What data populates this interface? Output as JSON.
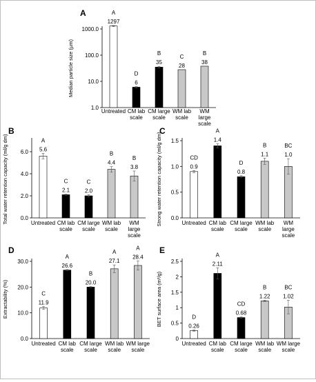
{
  "colors": {
    "untreated": "#ffffff",
    "cm": "#000000",
    "wm": "#c8c8c8",
    "axis": "#000000",
    "outline": "#000000"
  },
  "chart_data": [
    {
      "panel": "A",
      "type": "bar",
      "scale": "log",
      "ylabel": "Median particle size (µm)",
      "ylim": [
        1,
        1000
      ],
      "yticks": [
        "1.0",
        "10.0",
        "100.0",
        "1000.0"
      ],
      "ytick_values": [
        1,
        10,
        100,
        1000
      ],
      "categories": [
        {
          "lines": [
            "Untreated"
          ],
          "group": "untreated"
        },
        {
          "lines": [
            "CM lab",
            "scale"
          ],
          "group": "cm"
        },
        {
          "lines": [
            "CM large",
            "scale"
          ],
          "group": "cm"
        },
        {
          "lines": [
            "WM lab",
            "scale"
          ],
          "group": "wm"
        },
        {
          "lines": [
            "WM",
            "large",
            "scale"
          ],
          "group": "wm"
        }
      ],
      "values": [
        1297,
        6,
        35,
        28,
        38
      ],
      "errors": [
        60,
        0.3,
        2.5,
        0,
        0
      ],
      "labels": [
        "1297",
        "6",
        "35",
        "28",
        "38"
      ],
      "letters": [
        "A",
        "D",
        "B",
        "C",
        "B"
      ]
    },
    {
      "panel": "B",
      "type": "bar",
      "scale": "linear",
      "ylabel": "Total water retention capacity (ml/g dm)",
      "ylim": [
        0,
        7
      ],
      "yticks": [
        "0.0",
        "2.0",
        "4.0",
        "6.0"
      ],
      "ytick_values": [
        0,
        2,
        4,
        6
      ],
      "categories": [
        {
          "lines": [
            "Untreated"
          ],
          "group": "untreated"
        },
        {
          "lines": [
            "CM lab",
            "scale"
          ],
          "group": "cm"
        },
        {
          "lines": [
            "CM large",
            "scale"
          ],
          "group": "cm"
        },
        {
          "lines": [
            "WM lab",
            "scale"
          ],
          "group": "wm"
        },
        {
          "lines": [
            "WM",
            "large",
            "scale"
          ],
          "group": "wm"
        }
      ],
      "values": [
        5.6,
        2.1,
        2.0,
        4.4,
        3.8
      ],
      "errors": [
        0.25,
        0.05,
        0.1,
        0.25,
        0.45
      ],
      "labels": [
        "5.6",
        "2.1",
        "2.0",
        "4.4",
        "3.8"
      ],
      "letters": [
        "A",
        "C",
        "C",
        "B",
        "B"
      ]
    },
    {
      "panel": "C",
      "type": "bar",
      "scale": "linear",
      "ylabel": "Strong water retention capacity (ml/g dm)",
      "ylim": [
        0,
        1.5
      ],
      "yticks": [
        "0.0",
        "0.5",
        "1.0",
        "1.5"
      ],
      "ytick_values": [
        0,
        0.5,
        1.0,
        1.5
      ],
      "categories": [
        {
          "lines": [
            "Untreated"
          ],
          "group": "untreated"
        },
        {
          "lines": [
            "CM lab",
            "scale"
          ],
          "group": "cm"
        },
        {
          "lines": [
            "CM large",
            "scale"
          ],
          "group": "cm"
        },
        {
          "lines": [
            "WM lab",
            "scale"
          ],
          "group": "wm"
        },
        {
          "lines": [
            "WM",
            "large",
            "scale"
          ],
          "group": "wm"
        }
      ],
      "values": [
        0.9,
        1.4,
        0.8,
        1.1,
        1.0
      ],
      "errors": [
        0.02,
        0.04,
        0.02,
        0.06,
        0.15
      ],
      "labels": [
        "0.9",
        "1.4",
        "0.8",
        "1.1",
        "1.0"
      ],
      "letters": [
        "CD",
        "A",
        "D",
        "B",
        "BC"
      ]
    },
    {
      "panel": "D",
      "type": "bar",
      "scale": "linear",
      "ylabel": "Extractability (%)",
      "ylim": [
        0,
        30
      ],
      "yticks": [
        "0.0",
        "10.0",
        "20.0",
        "30.0"
      ],
      "ytick_values": [
        0,
        10,
        20,
        30
      ],
      "categories": [
        {
          "lines": [
            "Untreated"
          ],
          "group": "untreated"
        },
        {
          "lines": [
            "CM lab",
            "scale"
          ],
          "group": "cm"
        },
        {
          "lines": [
            "CM large",
            "scale"
          ],
          "group": "cm"
        },
        {
          "lines": [
            "WM lab",
            "scale"
          ],
          "group": "wm"
        },
        {
          "lines": [
            "WM large",
            "scale"
          ],
          "group": "wm"
        }
      ],
      "values": [
        11.9,
        26.6,
        20.0,
        27.1,
        28.4
      ],
      "errors": [
        0.6,
        0.2,
        0.2,
        1.5,
        1.8
      ],
      "labels": [
        "11.9",
        "26.6",
        "20.0",
        "27.1",
        "28.4"
      ],
      "letters": [
        "C",
        "A",
        "B",
        "A",
        "A"
      ]
    },
    {
      "panel": "E",
      "type": "bar",
      "scale": "linear",
      "ylabel": "BET surface area (m²/g)",
      "ylim": [
        0,
        2.5
      ],
      "yticks": [
        "0",
        "0.5",
        "1",
        "1.5",
        "2",
        "2.5"
      ],
      "ytick_values": [
        0,
        0.5,
        1,
        1.5,
        2,
        2.5
      ],
      "categories": [
        {
          "lines": [
            "Untreated"
          ],
          "group": "untreated"
        },
        {
          "lines": [
            "CM lab",
            "scale"
          ],
          "group": "cm"
        },
        {
          "lines": [
            "CM large",
            "scale"
          ],
          "group": "cm"
        },
        {
          "lines": [
            "WM lab",
            "scale"
          ],
          "group": "wm"
        },
        {
          "lines": [
            "WM large",
            "scale"
          ],
          "group": "wm"
        }
      ],
      "values": [
        0.26,
        2.11,
        0.68,
        1.22,
        1.02
      ],
      "errors": [
        0.02,
        0.18,
        0.02,
        0.02,
        0.22
      ],
      "labels": [
        "0.26",
        "2.11",
        "0.68",
        "1.22",
        "1.02"
      ],
      "letters": [
        "D",
        "A",
        "CD",
        "B",
        "BC"
      ]
    }
  ]
}
